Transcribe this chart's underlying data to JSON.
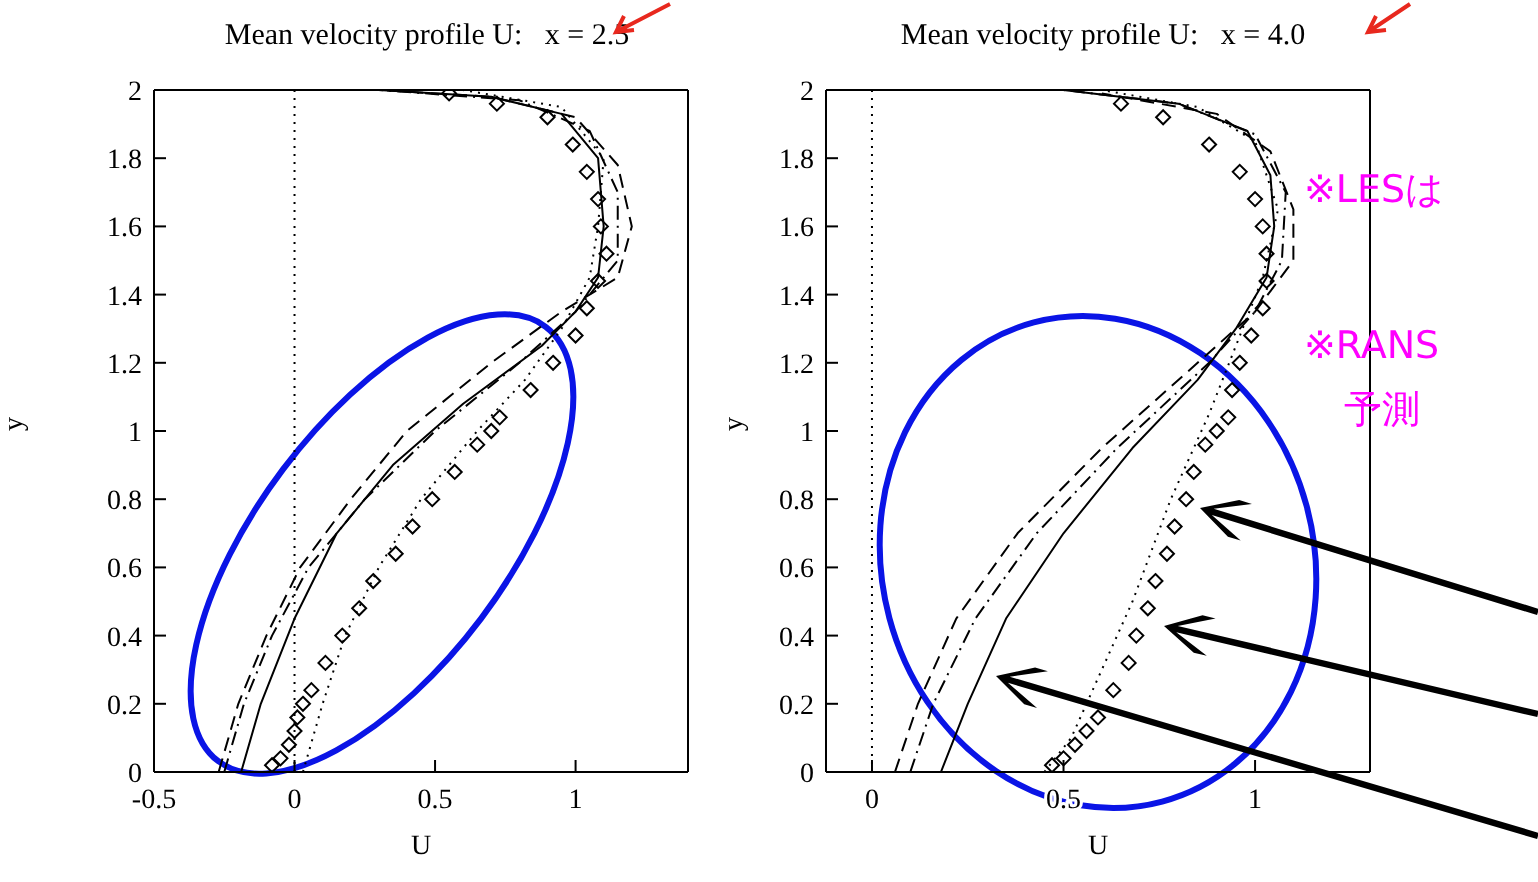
{
  "chart_data": [
    {
      "type": "line",
      "title": "Mean velocity profile U:   x = 2.5",
      "xlabel": "U",
      "ylabel": "y",
      "xlim": [
        -0.5,
        1.4
      ],
      "xticks": [
        -0.5,
        0,
        0.5,
        1
      ],
      "ylim": [
        0,
        2
      ],
      "yticks": [
        0,
        0.2,
        0.4,
        0.6,
        0.8,
        1,
        1.2,
        1.4,
        1.6,
        1.8,
        2
      ],
      "ref_lines": [
        {
          "axis": "x",
          "value": 0,
          "line_style": "dotted",
          "color": "#000000"
        }
      ],
      "series": [
        {
          "type": "line",
          "color": "#000000",
          "line_style": "solid",
          "x": [
            -0.19,
            -0.12,
            0,
            0.15,
            0.35,
            0.6,
            0.88,
            1.0,
            1.08,
            1.1,
            1.08,
            0.95,
            0.7,
            0.3
          ],
          "values": [
            0,
            0.2,
            0.45,
            0.7,
            0.9,
            1.08,
            1.25,
            1.35,
            1.45,
            1.6,
            1.8,
            1.93,
            1.98,
            2
          ]
        },
        {
          "type": "line",
          "color": "#000000",
          "line_style": "dashed",
          "x": [
            -0.27,
            -0.2,
            -0.1,
            0.02,
            0.2,
            0.4,
            0.7,
            0.95,
            1.15,
            1.2,
            1.15,
            1.0,
            0.7,
            0.3
          ],
          "values": [
            0,
            0.2,
            0.4,
            0.6,
            0.8,
            1.0,
            1.2,
            1.35,
            1.45,
            1.6,
            1.78,
            1.92,
            1.98,
            2
          ]
        },
        {
          "type": "line",
          "color": "#000000",
          "line_style": "dashdot",
          "x": [
            -0.25,
            -0.18,
            -0.08,
            0.05,
            0.25,
            0.5,
            0.8,
            1.0,
            1.15,
            1.15,
            1.05,
            0.8,
            0.3
          ],
          "values": [
            0,
            0.2,
            0.4,
            0.6,
            0.8,
            1.0,
            1.2,
            1.35,
            1.5,
            1.7,
            1.88,
            1.97,
            2
          ]
        },
        {
          "type": "line",
          "color": "#000000",
          "line_style": "dotted",
          "x": [
            0.03,
            0.1,
            0.18,
            0.3,
            0.45,
            0.65,
            0.82,
            0.95,
            1.05,
            1.08,
            1.1,
            0.95,
            0.6
          ],
          "values": [
            0,
            0.2,
            0.4,
            0.6,
            0.8,
            1.0,
            1.15,
            1.3,
            1.45,
            1.6,
            1.8,
            1.95,
            2
          ]
        },
        {
          "type": "scatter",
          "color": "#000000",
          "marker": "diamond",
          "x": [
            -0.08,
            -0.05,
            -0.02,
            0,
            0.01,
            0.03,
            0.06,
            0.11,
            0.17,
            0.23,
            0.28,
            0.36,
            0.42,
            0.49,
            0.57,
            0.65,
            0.7,
            0.73,
            0.84,
            0.92,
            1.0,
            1.04,
            1.08,
            1.11,
            1.09,
            1.08,
            1.04,
            0.99,
            0.9,
            0.72,
            0.55
          ],
          "values": [
            0.02,
            0.04,
            0.08,
            0.12,
            0.16,
            0.2,
            0.24,
            0.32,
            0.4,
            0.48,
            0.56,
            0.64,
            0.72,
            0.8,
            0.88,
            0.96,
            1.0,
            1.04,
            1.12,
            1.2,
            1.28,
            1.36,
            1.44,
            1.52,
            1.6,
            1.68,
            1.76,
            1.84,
            1.92,
            1.96,
            1.99
          ]
        }
      ]
    },
    {
      "type": "line",
      "title": "Mean velocity profile U:   x = 4.0",
      "xlabel": "U",
      "ylabel": "y",
      "xlim": [
        -0.12,
        1.3
      ],
      "xticks": [
        0,
        0.5,
        1
      ],
      "ylim": [
        0,
        2
      ],
      "yticks": [
        0,
        0.2,
        0.4,
        0.6,
        0.8,
        1,
        1.2,
        1.4,
        1.6,
        1.8,
        2
      ],
      "ref_lines": [
        {
          "axis": "x",
          "value": 0,
          "line_style": "dotted",
          "color": "#000000"
        }
      ],
      "annotations": [
        "※LESは",
        "※RANS",
        "予測"
      ],
      "series": [
        {
          "type": "line",
          "color": "#000000",
          "line_style": "solid",
          "x": [
            0.18,
            0.25,
            0.35,
            0.5,
            0.68,
            0.85,
            0.95,
            1.03,
            1.05,
            1.04,
            0.98,
            0.8,
            0.5
          ],
          "values": [
            0,
            0.2,
            0.45,
            0.7,
            0.95,
            1.15,
            1.3,
            1.45,
            1.6,
            1.75,
            1.88,
            1.96,
            2
          ]
        },
        {
          "type": "line",
          "color": "#000000",
          "line_style": "dashed",
          "x": [
            0.06,
            0.12,
            0.22,
            0.38,
            0.6,
            0.85,
            1.0,
            1.1,
            1.1,
            1.04,
            0.9,
            0.6
          ],
          "values": [
            0,
            0.2,
            0.45,
            0.7,
            0.95,
            1.2,
            1.35,
            1.5,
            1.65,
            1.82,
            1.93,
            1.99
          ]
        },
        {
          "type": "line",
          "color": "#000000",
          "line_style": "dashdot",
          "x": [
            0.1,
            0.16,
            0.27,
            0.43,
            0.64,
            0.88,
            1.0,
            1.07,
            1.08,
            1.0,
            0.8,
            0.5
          ],
          "values": [
            0,
            0.2,
            0.45,
            0.7,
            0.95,
            1.2,
            1.35,
            1.5,
            1.7,
            1.87,
            1.96,
            2
          ]
        },
        {
          "type": "line",
          "color": "#000000",
          "line_style": "dotted",
          "x": [
            0.45,
            0.52,
            0.6,
            0.68,
            0.78,
            0.88,
            0.95,
            1.02,
            1.06,
            1.0,
            0.85,
            0.6
          ],
          "values": [
            0,
            0.1,
            0.3,
            0.5,
            0.8,
            1.05,
            1.25,
            1.45,
            1.65,
            1.85,
            1.95,
            2
          ]
        },
        {
          "type": "scatter",
          "color": "#000000",
          "marker": "diamond",
          "x": [
            0.47,
            0.5,
            0.53,
            0.56,
            0.59,
            0.63,
            0.67,
            0.69,
            0.72,
            0.74,
            0.77,
            0.79,
            0.82,
            0.84,
            0.87,
            0.9,
            0.93,
            0.94,
            0.96,
            0.99,
            1.02,
            1.03,
            1.03,
            1.02,
            1.0,
            0.96,
            0.88,
            0.76,
            0.65
          ],
          "values": [
            0.02,
            0.04,
            0.08,
            0.12,
            0.16,
            0.24,
            0.32,
            0.4,
            0.48,
            0.56,
            0.64,
            0.72,
            0.8,
            0.88,
            0.96,
            1.0,
            1.04,
            1.12,
            1.2,
            1.28,
            1.36,
            1.44,
            1.52,
            1.6,
            1.68,
            1.76,
            1.84,
            1.92,
            1.96
          ]
        }
      ]
    }
  ]
}
